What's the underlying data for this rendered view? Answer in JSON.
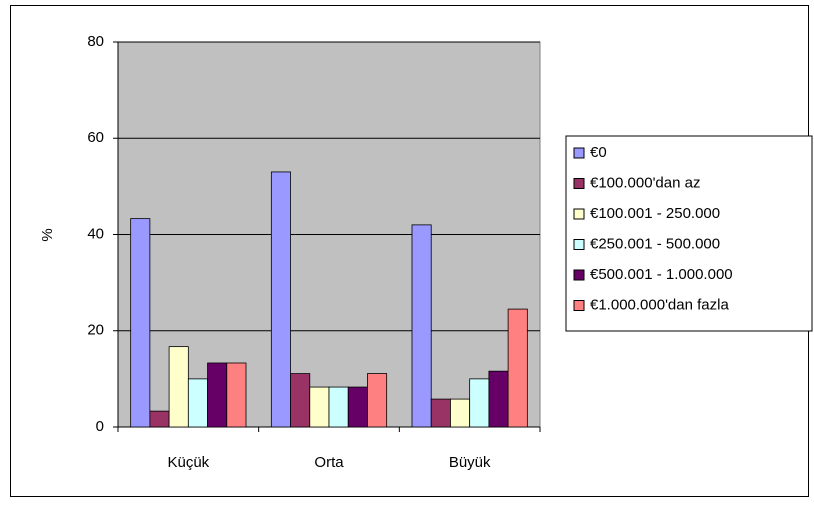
{
  "chart_data": {
    "type": "bar",
    "y_label": "%",
    "categories": [
      "Küçük",
      "Orta",
      "Büyük"
    ],
    "series": [
      {
        "name": "€0",
        "color": "#9999ff",
        "values": [
          43.3,
          53,
          42
        ]
      },
      {
        "name": "€100.000'dan az",
        "color": "#993366",
        "values": [
          3.3,
          11.1,
          5.8
        ]
      },
      {
        "name": "€100.001 - 250.000",
        "color": "#ffffcc",
        "values": [
          16.7,
          8.3,
          5.8
        ]
      },
      {
        "name": "€250.001 - 500.000",
        "color": "#ccffff",
        "values": [
          10,
          8.3,
          10
        ]
      },
      {
        "name": "€500.001 - 1.000.000",
        "color": "#660066",
        "values": [
          13.3,
          8.3,
          11.6
        ]
      },
      {
        "name": "€1.000.000'dan fazla",
        "color": "#ff8080",
        "values": [
          13.3,
          11.1,
          24.5
        ]
      }
    ],
    "ylim": [
      0,
      80
    ],
    "yticks": [
      0,
      20,
      40,
      60,
      80
    ],
    "grid": true,
    "legend": "right",
    "plot_background": "#c0c0c0"
  }
}
